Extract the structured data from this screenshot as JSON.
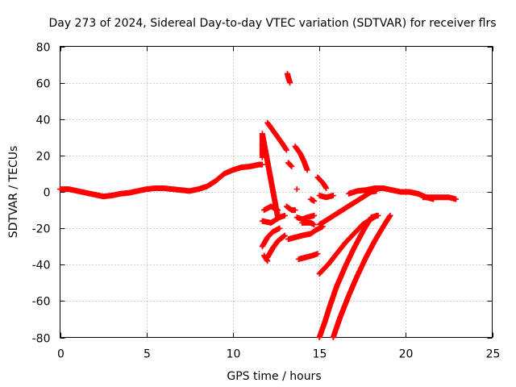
{
  "chart_data": {
    "type": "scatter",
    "title": "Day 273 of 2024, Sidereal Day-to-day VTEC variation (SDTVAR) for receiver flrs",
    "xlabel": "GPS time / hours",
    "ylabel": "SDTVAR / TECUs",
    "xlim": [
      0,
      25
    ],
    "ylim": [
      -80,
      80
    ],
    "xticks": [
      "0",
      "5",
      "10",
      "15",
      "20",
      "25"
    ],
    "yticks": [
      "-80",
      "-60",
      "-40",
      "-20",
      "0",
      "20",
      "40",
      "60",
      "80"
    ],
    "grid": true,
    "marker": "plus",
    "color": "#ff0000",
    "series": [
      {
        "points": [
          [
            0,
            1.5
          ],
          [
            0.5,
            1.5
          ],
          [
            1,
            0.5
          ],
          [
            1.5,
            -0.5
          ],
          [
            2,
            -1.5
          ],
          [
            2.5,
            -2.5
          ],
          [
            3,
            -2
          ],
          [
            3.5,
            -1
          ],
          [
            4,
            -0.5
          ],
          [
            4.5,
            0.5
          ],
          [
            5,
            1.5
          ],
          [
            5.5,
            2
          ],
          [
            6,
            2
          ],
          [
            6.5,
            1.5
          ],
          [
            7,
            1
          ],
          [
            7.5,
            0.5
          ],
          [
            8,
            1.5
          ],
          [
            8.5,
            3
          ],
          [
            9,
            6
          ],
          [
            9.5,
            10
          ],
          [
            10,
            12
          ],
          [
            10.5,
            13.5
          ],
          [
            11,
            14
          ],
          [
            11.5,
            15
          ],
          [
            11.7,
            15
          ]
        ]
      },
      {
        "points": [
          [
            11.7,
            19
          ],
          [
            11.7,
            32
          ],
          [
            12.6,
            -14
          ]
        ]
      },
      {
        "points": [
          [
            12.0,
            38
          ],
          [
            12.3,
            34
          ],
          [
            12.6,
            30
          ],
          [
            12.9,
            26
          ],
          [
            13.1,
            23
          ]
        ]
      },
      {
        "points": [
          [
            13.15,
            65
          ],
          [
            13.2,
            63
          ],
          [
            13.3,
            60
          ]
        ]
      },
      {
        "points": [
          [
            13.2,
            16
          ],
          [
            13.4,
            14
          ]
        ]
      },
      {
        "points": [
          [
            13.6,
            25
          ],
          [
            13.9,
            21
          ],
          [
            14.1,
            17
          ],
          [
            14.3,
            12
          ]
        ]
      },
      {
        "points": [
          [
            13.7,
            1.5
          ]
        ]
      },
      {
        "points": [
          [
            14.5,
            -4
          ],
          [
            14.7,
            -5
          ]
        ]
      },
      {
        "points": [
          [
            14.9,
            8
          ],
          [
            15.2,
            5
          ],
          [
            15.4,
            2
          ]
        ]
      },
      {
        "points": [
          [
            15.0,
            -2
          ],
          [
            15.4,
            -3
          ],
          [
            15.8,
            -2
          ]
        ]
      },
      {
        "points": [
          [
            11.8,
            -10
          ],
          [
            12.2,
            -8
          ],
          [
            12.6,
            -10
          ]
        ]
      },
      {
        "points": [
          [
            11.7,
            -16
          ],
          [
            12.2,
            -17
          ],
          [
            12.7,
            -14
          ],
          [
            13.0,
            -13
          ]
        ]
      },
      {
        "points": [
          [
            11.7,
            -30
          ],
          [
            12.0,
            -25
          ],
          [
            12.3,
            -22
          ],
          [
            12.7,
            -20
          ]
        ]
      },
      {
        "points": [
          [
            12.0,
            -36
          ],
          [
            12.3,
            -31
          ],
          [
            12.6,
            -27
          ],
          [
            13.0,
            -24
          ]
        ]
      },
      {
        "points": [
          [
            11.8,
            -35
          ],
          [
            12.0,
            -38
          ]
        ]
      },
      {
        "points": [
          [
            13.1,
            -8
          ],
          [
            13.4,
            -10
          ],
          [
            13.6,
            -10
          ]
        ]
      },
      {
        "points": [
          [
            13.2,
            -26
          ],
          [
            13.6,
            -25
          ],
          [
            14.0,
            -24
          ],
          [
            14.5,
            -23
          ],
          [
            14.8,
            -21
          ],
          [
            15.2,
            -19
          ]
        ]
      },
      {
        "points": [
          [
            13.7,
            -14
          ],
          [
            14.0,
            -15
          ],
          [
            14.3,
            -14
          ],
          [
            14.7,
            -13
          ]
        ]
      },
      {
        "points": [
          [
            14.0,
            -17
          ],
          [
            14.5,
            -17
          ],
          [
            14.7,
            -18
          ]
        ]
      },
      {
        "points": [
          [
            13.8,
            -37
          ],
          [
            14.2,
            -36
          ],
          [
            14.6,
            -35
          ],
          [
            14.9,
            -34
          ]
        ]
      },
      {
        "points": [
          [
            15.0,
            -45
          ],
          [
            15.5,
            -40
          ],
          [
            16.0,
            -34
          ],
          [
            16.5,
            -28
          ],
          [
            17.0,
            -23
          ],
          [
            17.5,
            -18
          ],
          [
            18.0,
            -15
          ],
          [
            18.3,
            -13
          ]
        ]
      },
      {
        "points": [
          [
            15.0,
            -18
          ],
          [
            15.5,
            -15
          ],
          [
            16.0,
            -12
          ],
          [
            16.5,
            -9
          ],
          [
            17.0,
            -6
          ],
          [
            17.5,
            -3
          ],
          [
            18.0,
            0
          ],
          [
            18.3,
            0.5
          ]
        ]
      },
      {
        "points": [
          [
            15.0,
            -80
          ],
          [
            15.3,
            -72
          ],
          [
            15.6,
            -63
          ],
          [
            16.0,
            -52
          ],
          [
            16.5,
            -41
          ],
          [
            17.0,
            -31
          ],
          [
            17.5,
            -22
          ],
          [
            18.0,
            -14
          ],
          [
            18.4,
            -13
          ]
        ]
      },
      {
        "points": [
          [
            15.8,
            -80
          ],
          [
            16.2,
            -69
          ],
          [
            16.7,
            -57
          ],
          [
            17.2,
            -46
          ],
          [
            17.7,
            -36
          ],
          [
            18.2,
            -27
          ],
          [
            18.7,
            -19
          ],
          [
            19.1,
            -13
          ]
        ]
      },
      {
        "points": [
          [
            16.7,
            -1
          ],
          [
            17.2,
            0.5
          ],
          [
            17.7,
            1
          ],
          [
            18.2,
            2
          ],
          [
            18.7,
            2
          ],
          [
            19.2,
            1
          ],
          [
            19.7,
            0
          ],
          [
            20.2,
            0
          ],
          [
            20.7,
            -1
          ],
          [
            21.2,
            -3
          ],
          [
            21.6,
            -4
          ]
        ]
      },
      {
        "points": [
          [
            21.0,
            -3
          ],
          [
            21.5,
            -3
          ],
          [
            22.0,
            -3
          ],
          [
            22.5,
            -3
          ],
          [
            22.9,
            -4
          ]
        ]
      }
    ]
  }
}
